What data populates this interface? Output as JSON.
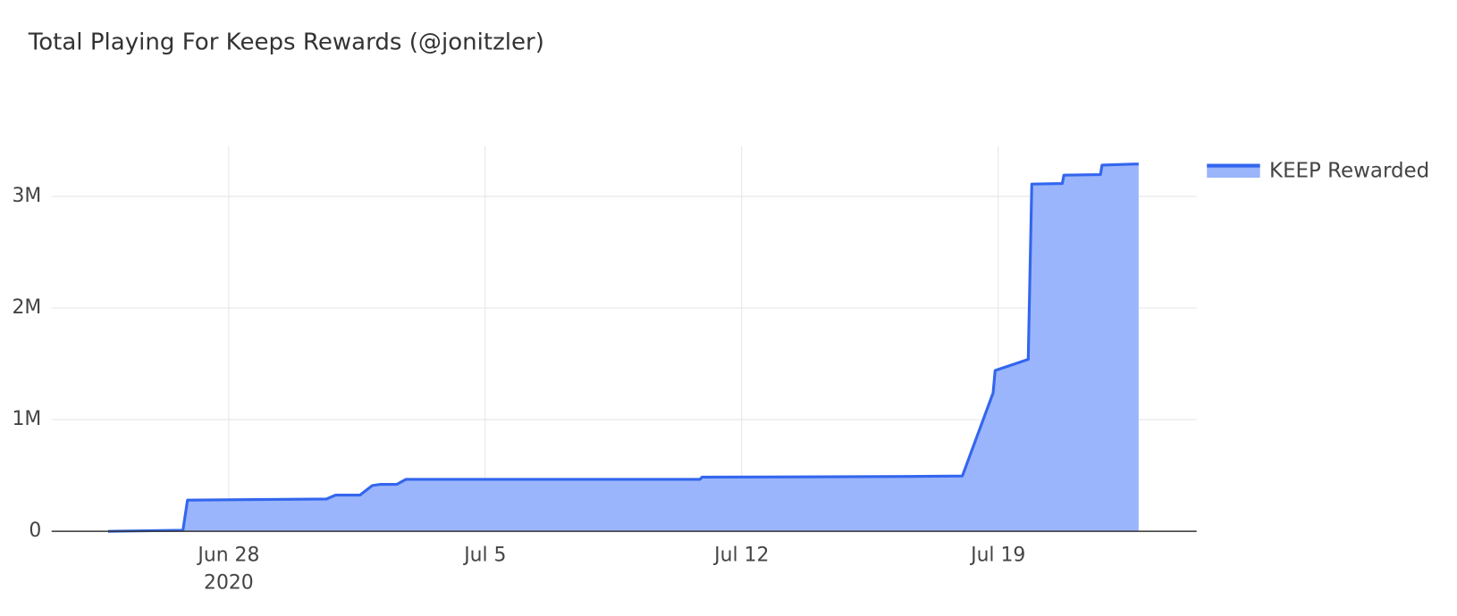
{
  "chart_data": {
    "type": "area",
    "title": "Total Playing For Keeps Rewards (@jonitzler)",
    "x": [
      "2020-06-24T17:00",
      "2020-06-26T18:00",
      "2020-06-26T21:00",
      "2020-06-30T16:00",
      "2020-06-30T22:00",
      "2020-07-01T14:00",
      "2020-07-01T22:00",
      "2020-07-02T03:00",
      "2020-07-02T14:00",
      "2020-07-02T20:00",
      "2020-07-10T20:40",
      "2020-07-10T22:00",
      "2020-07-15T19:00",
      "2020-07-18T00:30",
      "2020-07-18T20:40",
      "2020-07-18T22:00",
      "2020-07-19T19:40",
      "2020-07-19T22:00",
      "2020-07-20T18:00",
      "2020-07-20T19:00",
      "2020-07-21T19:00",
      "2020-07-21T20:00",
      "2020-07-22T20:00"
    ],
    "series": [
      {
        "name": "KEEP Rewarded",
        "color": "#3366ee",
        "fill": "#9ab5fb",
        "values": [
          0,
          10000,
          280000,
          290000,
          325000,
          325000,
          410000,
          420000,
          420000,
          465000,
          465000,
          485000,
          490000,
          495000,
          1240000,
          1440000,
          1540000,
          3110000,
          3115000,
          3190000,
          3195000,
          3280000,
          3290000
        ]
      }
    ],
    "xlim": [
      "2020-06-23T04:00",
      "2020-07-24T10:00"
    ],
    "xticks": [
      {
        "value": "2020-06-28",
        "label": "Jun 28",
        "sublabel": "2020"
      },
      {
        "value": "2020-07-05",
        "label": "Jul 5"
      },
      {
        "value": "2020-07-12",
        "label": "Jul 12"
      },
      {
        "value": "2020-07-19",
        "label": "Jul 19"
      }
    ],
    "ylim": [
      0,
      3450000
    ],
    "yticks": [
      0,
      {
        "value": 1000000,
        "label": "1M"
      },
      {
        "value": 2000000,
        "label": "2M"
      },
      {
        "value": 3000000,
        "label": "3M"
      }
    ],
    "grid": true,
    "legend": "right"
  }
}
